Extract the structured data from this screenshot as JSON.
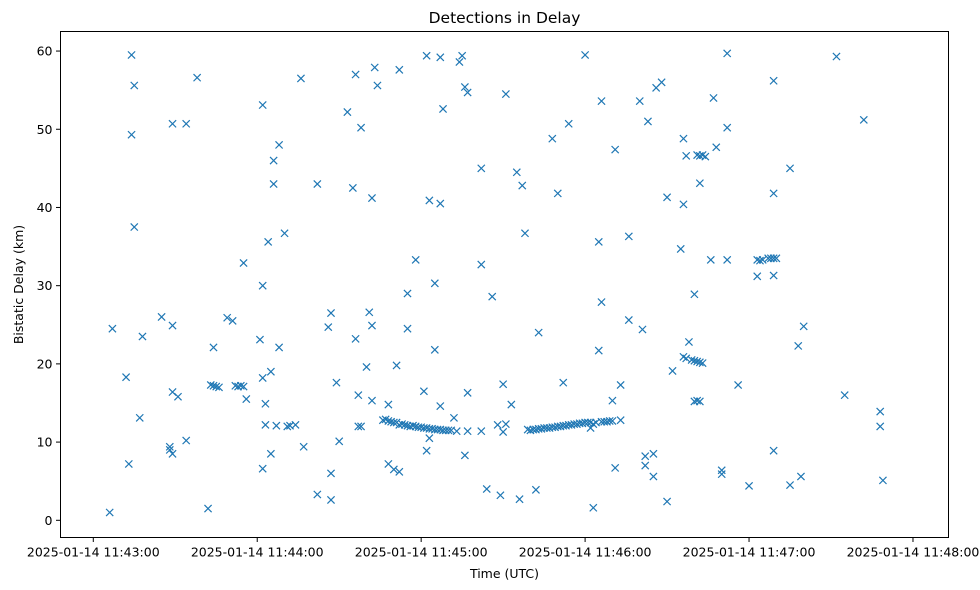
{
  "chart_data": {
    "type": "scatter",
    "title": "Detections in Delay",
    "xlabel": "Time (UTC)",
    "ylabel": "Bistatic Delay (km)",
    "x_unit": "seconds after 2025-01-14 11:43:00",
    "xlim": [
      -12,
      313
    ],
    "ylim": [
      -2.2,
      62.5
    ],
    "grid": false,
    "marker": "x",
    "color": "#1f77b4",
    "x_ticks": [
      {
        "value": 0,
        "label": "2025-01-14 11:43:00"
      },
      {
        "value": 60,
        "label": "2025-01-14 11:44:00"
      },
      {
        "value": 120,
        "label": "2025-01-14 11:45:00"
      },
      {
        "value": 180,
        "label": "2025-01-14 11:46:00"
      },
      {
        "value": 240,
        "label": "2025-01-14 11:47:00"
      },
      {
        "value": 300,
        "label": "2025-01-14 11:48:00"
      }
    ],
    "y_ticks": [
      {
        "value": 0,
        "label": "0"
      },
      {
        "value": 10,
        "label": "10"
      },
      {
        "value": 20,
        "label": "20"
      },
      {
        "value": 30,
        "label": "30"
      },
      {
        "value": 40,
        "label": "40"
      },
      {
        "value": 50,
        "label": "50"
      },
      {
        "value": 60,
        "label": "60"
      }
    ],
    "points": [
      [
        6,
        1.0
      ],
      [
        7,
        24.5
      ],
      [
        12,
        18.3
      ],
      [
        13,
        7.2
      ],
      [
        14,
        59.5
      ],
      [
        14,
        49.3
      ],
      [
        15,
        55.6
      ],
      [
        15,
        37.5
      ],
      [
        17,
        13.1
      ],
      [
        18,
        23.5
      ],
      [
        25,
        26.0
      ],
      [
        28,
        9.4
      ],
      [
        28,
        9.0
      ],
      [
        29,
        50.7
      ],
      [
        29,
        24.9
      ],
      [
        29,
        16.4
      ],
      [
        29,
        8.5
      ],
      [
        31,
        15.8
      ],
      [
        34,
        50.7
      ],
      [
        34,
        10.2
      ],
      [
        38,
        56.6
      ],
      [
        42,
        1.5
      ],
      [
        43,
        17.3
      ],
      [
        44,
        17.2
      ],
      [
        44,
        22.1
      ],
      [
        45,
        17.1
      ],
      [
        46,
        17.0
      ],
      [
        49,
        25.9
      ],
      [
        51,
        25.5
      ],
      [
        52,
        17.2
      ],
      [
        53,
        17.1
      ],
      [
        54,
        17.2
      ],
      [
        55,
        32.9
      ],
      [
        55,
        17.1
      ],
      [
        56,
        15.5
      ],
      [
        61,
        23.1
      ],
      [
        62,
        30.0
      ],
      [
        62,
        18.2
      ],
      [
        62,
        6.6
      ],
      [
        62,
        53.1
      ],
      [
        63,
        14.9
      ],
      [
        63,
        12.2
      ],
      [
        64,
        35.6
      ],
      [
        65,
        19.0
      ],
      [
        65,
        8.5
      ],
      [
        66,
        46.0
      ],
      [
        66,
        43.0
      ],
      [
        67,
        12.1
      ],
      [
        68,
        48.0
      ],
      [
        68,
        22.1
      ],
      [
        70,
        36.7
      ],
      [
        71,
        12.0
      ],
      [
        72,
        12.1
      ],
      [
        74,
        12.2
      ],
      [
        76,
        56.5
      ],
      [
        77,
        9.4
      ],
      [
        82,
        43.0
      ],
      [
        82,
        3.3
      ],
      [
        86,
        24.7
      ],
      [
        87,
        2.6
      ],
      [
        87,
        6.0
      ],
      [
        87,
        26.5
      ],
      [
        89,
        17.6
      ],
      [
        90,
        10.1
      ],
      [
        93,
        52.2
      ],
      [
        95,
        42.5
      ],
      [
        96,
        57.0
      ],
      [
        96,
        23.2
      ],
      [
        97,
        16.0
      ],
      [
        97,
        12.0
      ],
      [
        98,
        50.2
      ],
      [
        98,
        12.0
      ],
      [
        100,
        19.6
      ],
      [
        101,
        26.6
      ],
      [
        102,
        24.9
      ],
      [
        102,
        15.3
      ],
      [
        102,
        41.2
      ],
      [
        103,
        57.9
      ],
      [
        104,
        55.6
      ],
      [
        106,
        12.8
      ],
      [
        107,
        12.9
      ],
      [
        108,
        14.8
      ],
      [
        108,
        12.7
      ],
      [
        108,
        7.2
      ],
      [
        109,
        12.6
      ],
      [
        110,
        12.5
      ],
      [
        110,
        6.5
      ],
      [
        111,
        12.5
      ],
      [
        111,
        19.8
      ],
      [
        112,
        57.6
      ],
      [
        112,
        12.2
      ],
      [
        112,
        6.2
      ],
      [
        113,
        12.3
      ],
      [
        114,
        12.2
      ],
      [
        115,
        24.5
      ],
      [
        115,
        29.0
      ],
      [
        115,
        12.1
      ],
      [
        116,
        12.0
      ],
      [
        117,
        12.1
      ],
      [
        118,
        33.3
      ],
      [
        118,
        12.0
      ],
      [
        119,
        11.9
      ],
      [
        120,
        11.9
      ],
      [
        121,
        16.5
      ],
      [
        121,
        11.8
      ],
      [
        122,
        11.8
      ],
      [
        122,
        59.4
      ],
      [
        122,
        8.9
      ],
      [
        123,
        11.7
      ],
      [
        123,
        40.9
      ],
      [
        123,
        10.5
      ],
      [
        124,
        11.7
      ],
      [
        125,
        21.8
      ],
      [
        125,
        30.3
      ],
      [
        125,
        11.6
      ],
      [
        126,
        11.6
      ],
      [
        127,
        59.2
      ],
      [
        127,
        40.5
      ],
      [
        127,
        14.6
      ],
      [
        127,
        11.6
      ],
      [
        128,
        52.6
      ],
      [
        128,
        11.5
      ],
      [
        129,
        11.5
      ],
      [
        130,
        11.5
      ],
      [
        131,
        11.5
      ],
      [
        132,
        13.1
      ],
      [
        133,
        11.4
      ],
      [
        134,
        58.6
      ],
      [
        135,
        59.4
      ],
      [
        136,
        55.4
      ],
      [
        136,
        8.3
      ],
      [
        137,
        54.7
      ],
      [
        137,
        16.3
      ],
      [
        137,
        11.4
      ],
      [
        142,
        11.4
      ],
      [
        142,
        45.0
      ],
      [
        142,
        32.7
      ],
      [
        144,
        4.0
      ],
      [
        146,
        28.6
      ],
      [
        148,
        12.2
      ],
      [
        149,
        3.2
      ],
      [
        150,
        17.4
      ],
      [
        150,
        11.3
      ],
      [
        151,
        12.3
      ],
      [
        151,
        54.5
      ],
      [
        153,
        14.8
      ],
      [
        155,
        44.5
      ],
      [
        156,
        2.7
      ],
      [
        157,
        42.8
      ],
      [
        158,
        36.7
      ],
      [
        159,
        11.6
      ],
      [
        160,
        11.5
      ],
      [
        161,
        11.6
      ],
      [
        162,
        3.9
      ],
      [
        162,
        11.6
      ],
      [
        163,
        24.0
      ],
      [
        163,
        11.7
      ],
      [
        164,
        11.7
      ],
      [
        165,
        11.8
      ],
      [
        166,
        11.8
      ],
      [
        167,
        11.8
      ],
      [
        168,
        11.9
      ],
      [
        168,
        48.8
      ],
      [
        169,
        11.9
      ],
      [
        170,
        12.0
      ],
      [
        170,
        41.8
      ],
      [
        171,
        12.0
      ],
      [
        172,
        17.6
      ],
      [
        172,
        12.1
      ],
      [
        173,
        12.1
      ],
      [
        174,
        50.7
      ],
      [
        174,
        12.2
      ],
      [
        175,
        12.2
      ],
      [
        176,
        12.3
      ],
      [
        177,
        12.3
      ],
      [
        178,
        12.4
      ],
      [
        179,
        12.4
      ],
      [
        180,
        12.5
      ],
      [
        180,
        59.5
      ],
      [
        181,
        12.5
      ],
      [
        182,
        12.5
      ],
      [
        182,
        11.8
      ],
      [
        183,
        12.3
      ],
      [
        183,
        1.6
      ],
      [
        184,
        12.5
      ],
      [
        185,
        35.6
      ],
      [
        185,
        21.7
      ],
      [
        186,
        12.6
      ],
      [
        186,
        53.6
      ],
      [
        186,
        27.9
      ],
      [
        187,
        12.6
      ],
      [
        188,
        12.6
      ],
      [
        189,
        12.7
      ],
      [
        190,
        12.7
      ],
      [
        190,
        15.3
      ],
      [
        191,
        47.4
      ],
      [
        191,
        6.7
      ],
      [
        193,
        17.3
      ],
      [
        193,
        12.8
      ],
      [
        196,
        36.3
      ],
      [
        196,
        25.6
      ],
      [
        200,
        53.6
      ],
      [
        201,
        24.4
      ],
      [
        202,
        7.0
      ],
      [
        202,
        8.2
      ],
      [
        203,
        51.0
      ],
      [
        205,
        8.5
      ],
      [
        205,
        5.6
      ],
      [
        206,
        55.3
      ],
      [
        208,
        56.0
      ],
      [
        210,
        41.3
      ],
      [
        210,
        2.4
      ],
      [
        212,
        19.1
      ],
      [
        215,
        34.7
      ],
      [
        216,
        20.9
      ],
      [
        216,
        48.8
      ],
      [
        216,
        40.4
      ],
      [
        217,
        46.6
      ],
      [
        217,
        20.7
      ],
      [
        218,
        22.8
      ],
      [
        219,
        20.5
      ],
      [
        220,
        28.9
      ],
      [
        220,
        20.4
      ],
      [
        220,
        15.2
      ],
      [
        221,
        20.3
      ],
      [
        221,
        46.7
      ],
      [
        221,
        15.3
      ],
      [
        222,
        46.6
      ],
      [
        222,
        43.1
      ],
      [
        222,
        20.2
      ],
      [
        222,
        15.2
      ],
      [
        223,
        46.7
      ],
      [
        223,
        20.1
      ],
      [
        224,
        46.5
      ],
      [
        226,
        33.3
      ],
      [
        227,
        54.0
      ],
      [
        228,
        47.7
      ],
      [
        230,
        6.4
      ],
      [
        230,
        5.9
      ],
      [
        232,
        59.7
      ],
      [
        232,
        50.2
      ],
      [
        232,
        33.3
      ],
      [
        236,
        17.3
      ],
      [
        240,
        4.4
      ],
      [
        243,
        33.3
      ],
      [
        243,
        31.2
      ],
      [
        244,
        33.2
      ],
      [
        245,
        33.3
      ],
      [
        247,
        33.5
      ],
      [
        248,
        33.5
      ],
      [
        249,
        56.2
      ],
      [
        249,
        41.8
      ],
      [
        249,
        31.3
      ],
      [
        249,
        33.5
      ],
      [
        249,
        8.9
      ],
      [
        250,
        33.5
      ],
      [
        255,
        45.0
      ],
      [
        255,
        4.5
      ],
      [
        258,
        22.3
      ],
      [
        259,
        5.6
      ],
      [
        260,
        24.8
      ],
      [
        272,
        59.3
      ],
      [
        275,
        16.0
      ],
      [
        282,
        51.2
      ],
      [
        288,
        13.9
      ],
      [
        288,
        12.0
      ],
      [
        289,
        5.1
      ]
    ]
  }
}
